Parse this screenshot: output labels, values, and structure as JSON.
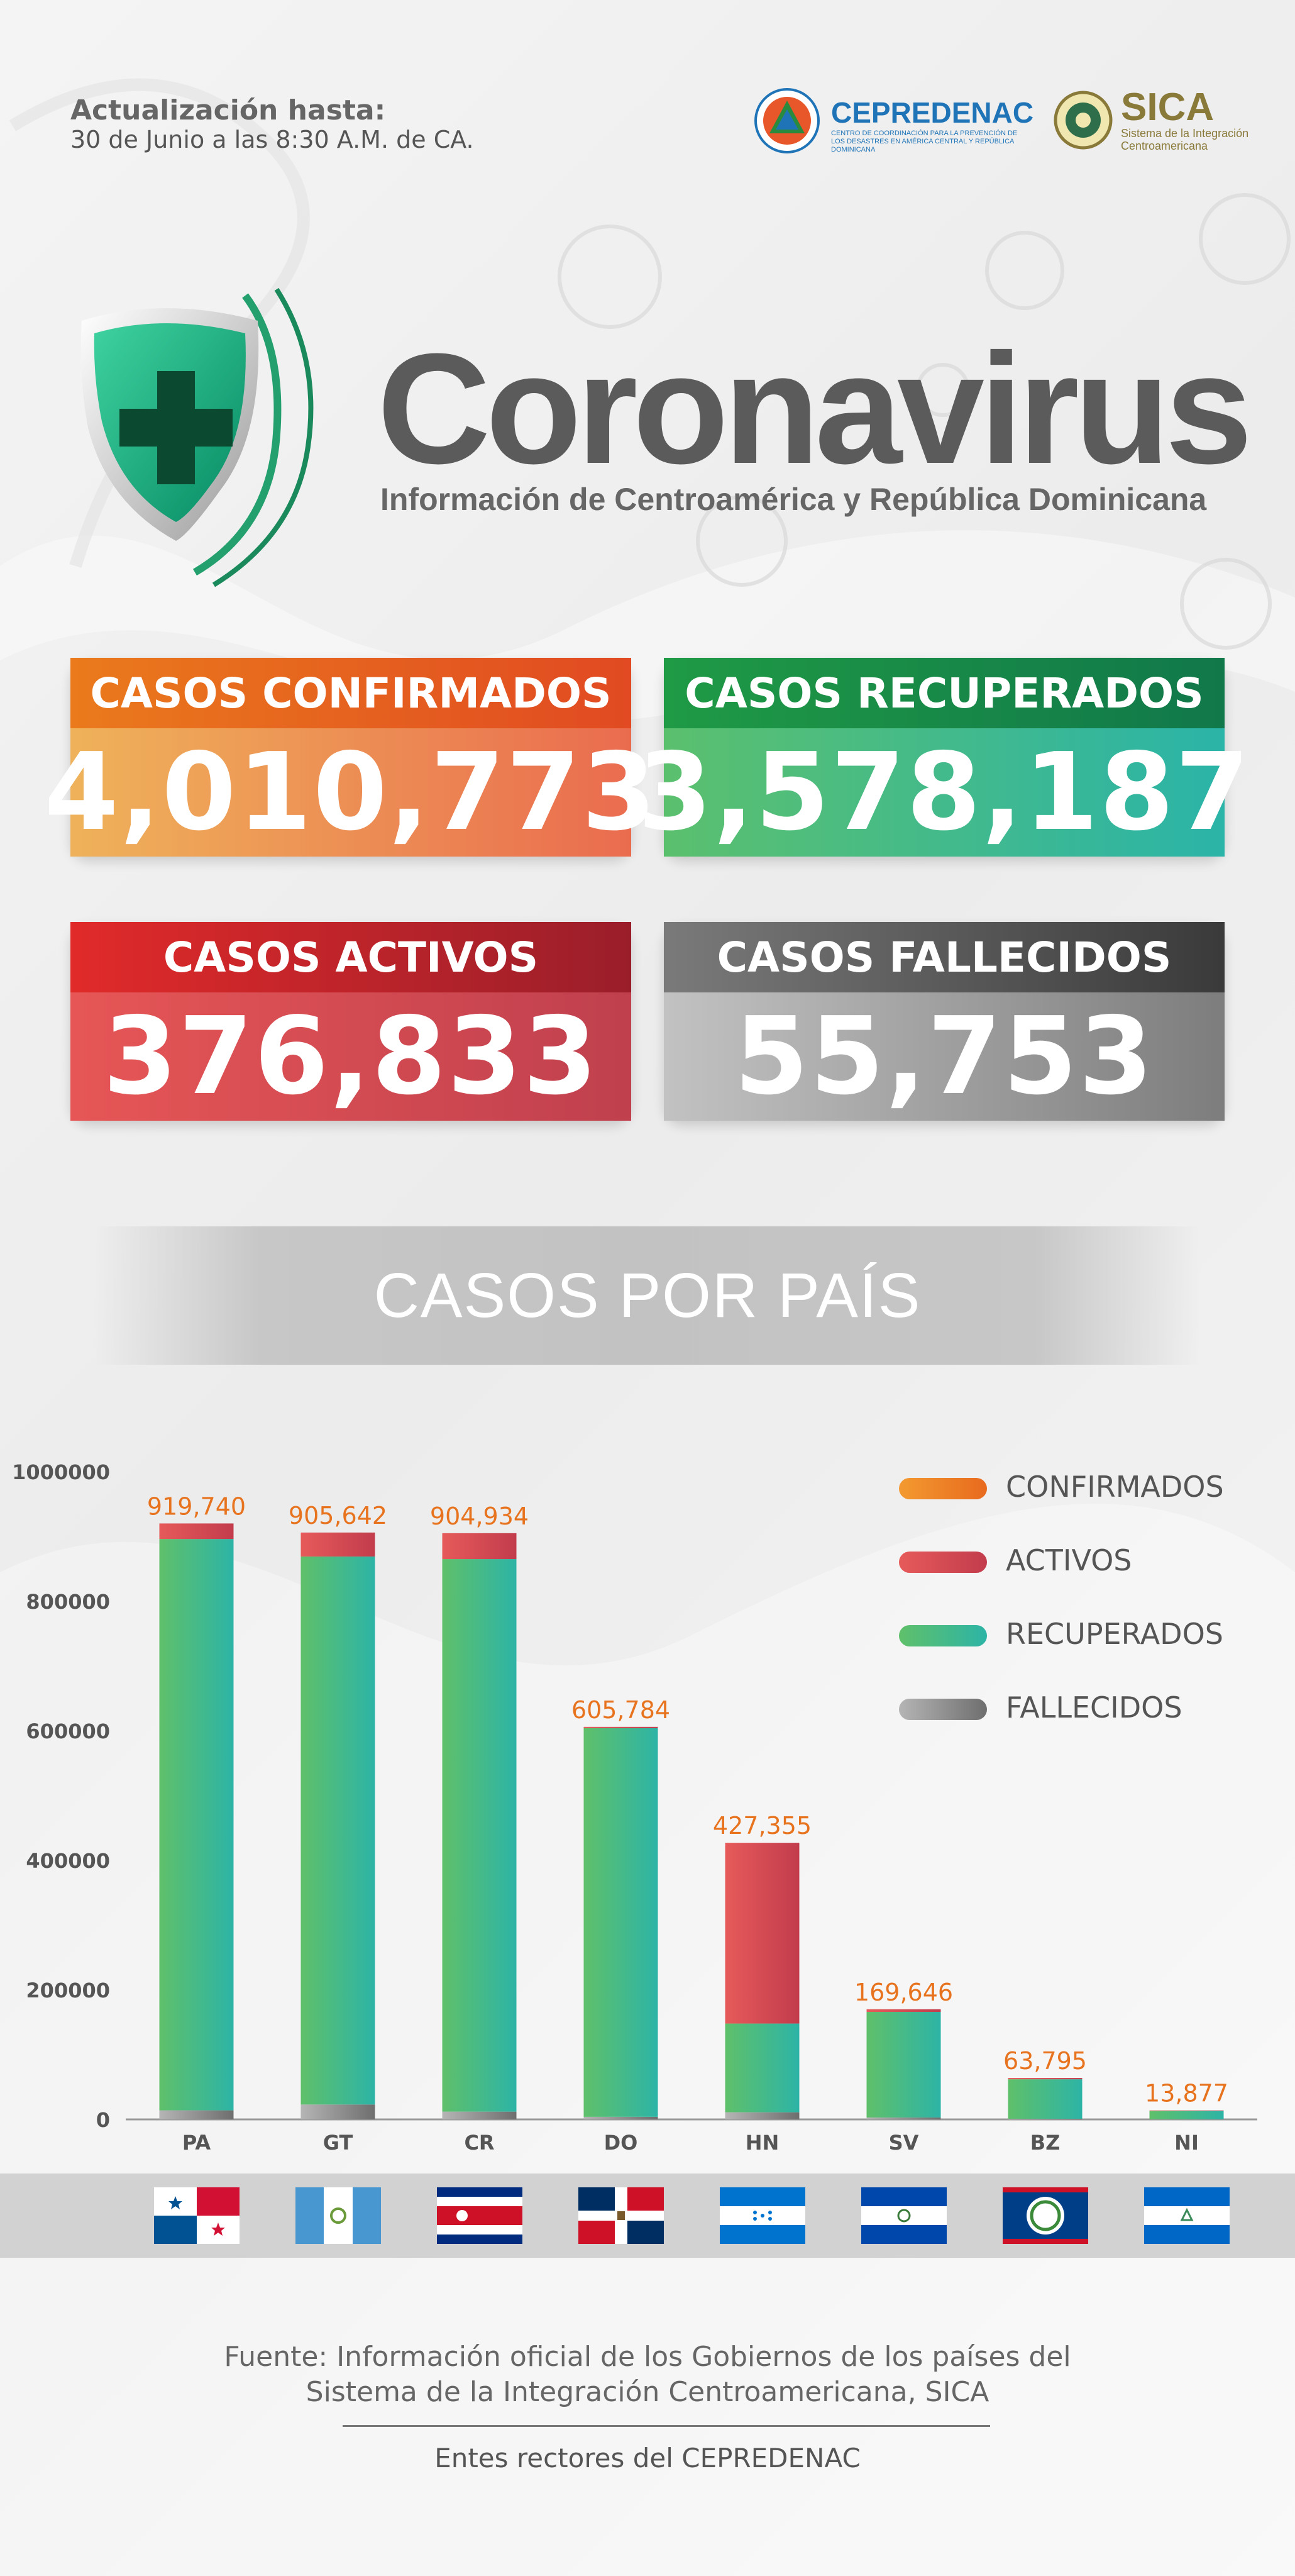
{
  "header": {
    "update_label": "Actualización hasta:",
    "update_date": "30 de Junio a las 8:30 A.M. de CA.",
    "logo_cepredenac": "CEPREDENAC",
    "logo_cepredenac_sub": "CENTRO DE COORDINACIÓN PARA LA PREVENCIÓN DE LOS DESASTRES EN AMÉRICA CENTRAL Y REPÚBLICA DOMINICANA",
    "logo_sica": "SICA",
    "logo_sica_sub": "Sistema de la Integración Centroamericana"
  },
  "hero": {
    "title": "Coronavirus",
    "subtitle": "Información de Centroamérica y República Dominicana"
  },
  "stats": {
    "confirmed": {
      "label": "CASOS CONFIRMADOS",
      "value": "4,010,773"
    },
    "recovered": {
      "label": "CASOS RECUPERADOS",
      "value": "3,578,187"
    },
    "active": {
      "label": "CASOS ACTIVOS",
      "value": "376,833"
    },
    "deceased": {
      "label": "CASOS FALLECIDOS",
      "value": "55,753"
    }
  },
  "section_title": "CASOS POR PAÍS",
  "chart_data": {
    "type": "bar",
    "stacked": true,
    "categories": [
      "PA",
      "GT",
      "CR",
      "DO",
      "HN",
      "SV",
      "BZ",
      "NI"
    ],
    "data_labels": [
      "919,740",
      "905,642",
      "904,934",
      "605,784",
      "427,355",
      "169,646",
      "63,795",
      "13,877"
    ],
    "series": [
      {
        "name": "FALLECIDOS",
        "values": [
          14000,
          23000,
          12000,
          4000,
          11000,
          3000,
          1000,
          200
        ]
      },
      {
        "name": "RECUPERADOS",
        "values": [
          882000,
          846000,
          853000,
          600000,
          137000,
          163000,
          61000,
          13000
        ]
      },
      {
        "name": "ACTIVOS",
        "values": [
          24000,
          37000,
          40000,
          2000,
          279000,
          4000,
          2000,
          700
        ]
      }
    ],
    "legend": [
      "CONFIRMADOS",
      "ACTIVOS",
      "RECUPERADOS",
      "FALLECIDOS"
    ],
    "legend_colors": [
      "#ee7422",
      "#e05a5e",
      "#4bbf7a",
      "#8a8a8a"
    ],
    "legend_position": "top-right",
    "yticks": [
      "1000000",
      "800000",
      "600000",
      "400000",
      "200000",
      "0"
    ],
    "ylim": [
      0,
      1000000
    ],
    "grid": false
  },
  "flags": [
    "panama-flag-icon",
    "guatemala-flag-icon",
    "costa-rica-flag-icon",
    "dominican-republic-flag-icon",
    "honduras-flag-icon",
    "el-salvador-flag-icon",
    "belize-flag-icon",
    "nicaragua-flag-icon"
  ],
  "footer": {
    "source_line1": "Fuente: Información oficial de los Gobiernos de los países del",
    "source_line2": "Sistema de la Integración Centroamericana, SICA",
    "entes": "Entes rectores del CEPREDENAC"
  }
}
